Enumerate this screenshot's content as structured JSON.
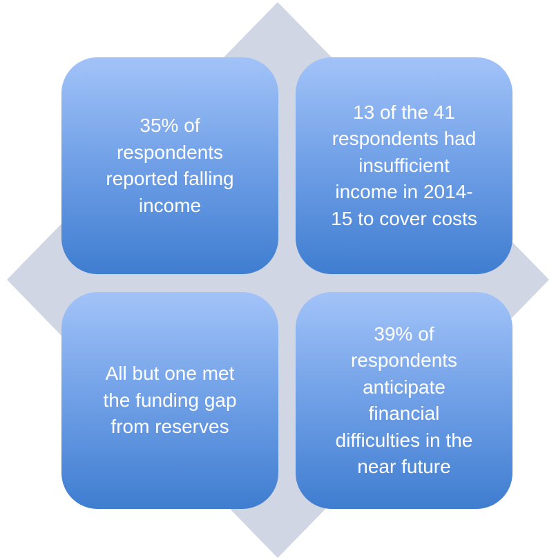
{
  "nodes": [
    {
      "lines": [
        "35% of",
        "respondents",
        "reported falling",
        "income"
      ]
    },
    {
      "lines": [
        "13 of the 41",
        "respondents had",
        "insufficient",
        "income in 2014-",
        "15 to cover costs"
      ]
    },
    {
      "lines": [
        "All but one met",
        "the funding gap",
        "from reserves"
      ]
    },
    {
      "lines": [
        "39% of",
        "respondents",
        "anticipate",
        "financial",
        "difficulties in the",
        "near future"
      ]
    }
  ]
}
